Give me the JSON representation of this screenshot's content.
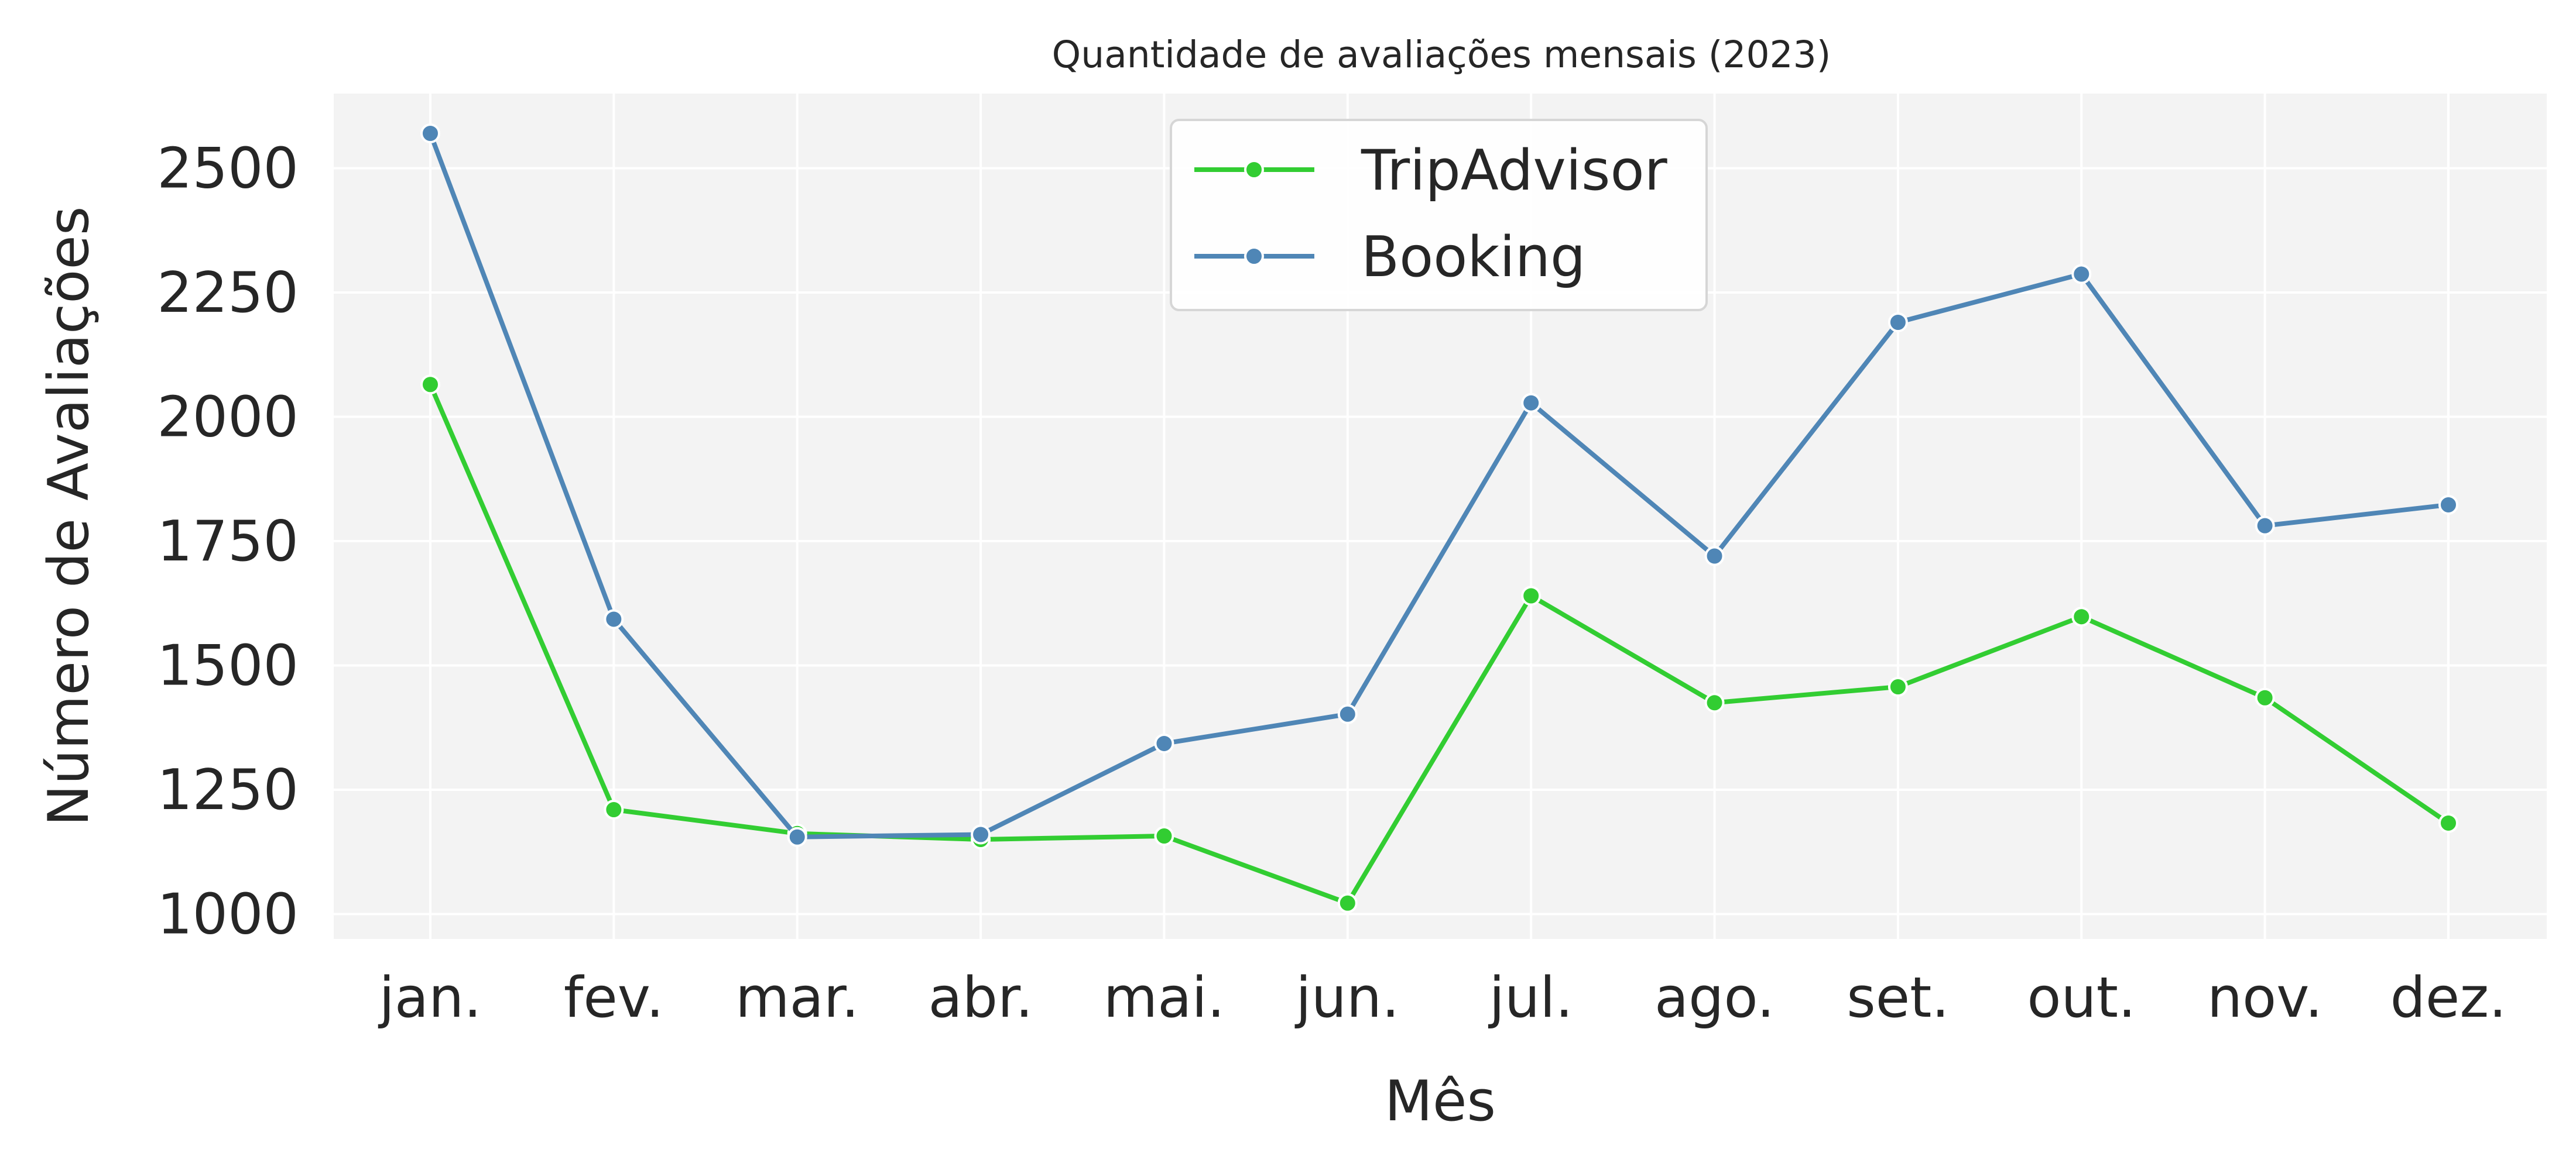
{
  "chart_data": {
    "type": "line",
    "title": "Quantidade de avaliações mensais (2023)",
    "xlabel": "Mês",
    "ylabel": "Número de Avaliações",
    "categories": [
      "jan.",
      "fev.",
      "mar.",
      "abr.",
      "mai.",
      "jun.",
      "jul.",
      "ago.",
      "set.",
      "out.",
      "nov.",
      "dez."
    ],
    "yticks": [
      1000,
      1250,
      1500,
      1750,
      2000,
      2250,
      2500
    ],
    "ylim": [
      950,
      2650
    ],
    "grid": true,
    "legend_position": "top-center",
    "series": [
      {
        "name": "TripAdvisor",
        "color": "#32cd32",
        "values": [
          2065,
          1210,
          1162,
          1150,
          1157,
          1022,
          1640,
          1425,
          1457,
          1598,
          1435,
          1183
        ]
      },
      {
        "name": "Booking",
        "color": "#4f86b6",
        "values": [
          2570,
          1593,
          1155,
          1160,
          1343,
          1402,
          2028,
          1720,
          2190,
          2287,
          1781,
          1823
        ]
      }
    ]
  }
}
